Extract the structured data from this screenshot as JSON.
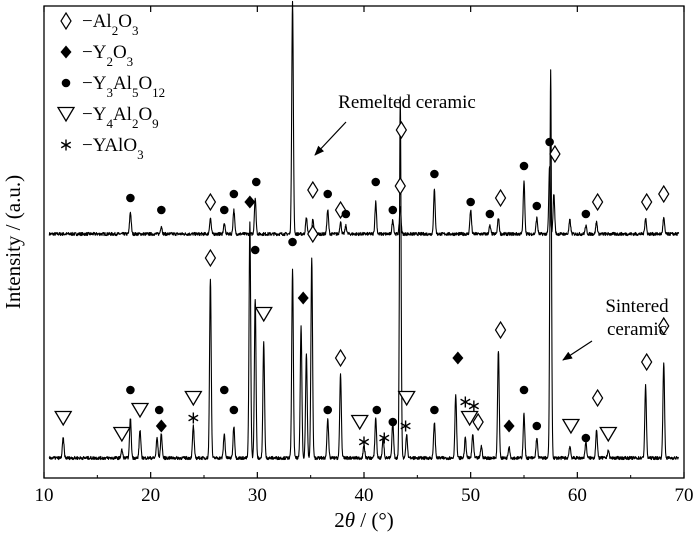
{
  "chart_data": {
    "type": "line",
    "xlabel_parts": [
      {
        "text": "2",
        "style": "normal"
      },
      {
        "text": "θ",
        "style": "italic"
      },
      {
        "text": " / (°)",
        "style": "normal"
      }
    ],
    "ylabel": "Intensity / (a.u.)",
    "xlim": [
      10,
      70
    ],
    "x_ticks": [
      10,
      20,
      30,
      40,
      50,
      60,
      70
    ],
    "y_ticks": "none",
    "grid": false,
    "legend_position": "top-left",
    "legend": [
      {
        "marker": "open-diamond",
        "parts": [
          {
            "t": "−Al"
          },
          {
            "t": "2",
            "sub": true
          },
          {
            "t": "O"
          },
          {
            "t": "3",
            "sub": true
          }
        ]
      },
      {
        "marker": "filled-diamond",
        "parts": [
          {
            "t": "−Y"
          },
          {
            "t": "2",
            "sub": true
          },
          {
            "t": "O"
          },
          {
            "t": "3",
            "sub": true
          }
        ]
      },
      {
        "marker": "filled-circle",
        "parts": [
          {
            "t": "−Y"
          },
          {
            "t": "3",
            "sub": true
          },
          {
            "t": "Al"
          },
          {
            "t": "5",
            "sub": true
          },
          {
            "t": "O"
          },
          {
            "t": "12",
            "sub": true
          }
        ]
      },
      {
        "marker": "open-triangle",
        "parts": [
          {
            "t": "−Y"
          },
          {
            "t": "4",
            "sub": true
          },
          {
            "t": "Al"
          },
          {
            "t": "2",
            "sub": true
          },
          {
            "t": "O"
          },
          {
            "t": "9",
            "sub": true
          }
        ]
      },
      {
        "marker": "asterisk",
        "parts": [
          {
            "t": "−YAlO"
          },
          {
            "t": "3",
            "sub": true
          }
        ]
      }
    ],
    "series": [
      {
        "label_lines": [
          "Remelted ceramic"
        ],
        "arrow_target_x": 33.2,
        "baseline": 0.58,
        "peaks": [
          {
            "x": 18.1,
            "h": 0.055
          },
          {
            "x": 21.0,
            "h": 0.02
          },
          {
            "x": 25.6,
            "h": 0.04
          },
          {
            "x": 26.9,
            "h": 0.025
          },
          {
            "x": 27.8,
            "h": 0.06
          },
          {
            "x": 29.8,
            "h": 0.09
          },
          {
            "x": 33.3,
            "h": 0.58
          },
          {
            "x": 34.6,
            "h": 0.04
          },
          {
            "x": 35.2,
            "h": 0.035
          },
          {
            "x": 36.6,
            "h": 0.06
          },
          {
            "x": 37.8,
            "h": 0.03
          },
          {
            "x": 38.3,
            "h": 0.02
          },
          {
            "x": 41.1,
            "h": 0.08
          },
          {
            "x": 42.7,
            "h": 0.035
          },
          {
            "x": 43.4,
            "h": 0.07
          },
          {
            "x": 46.6,
            "h": 0.11
          },
          {
            "x": 50.0,
            "h": 0.06
          },
          {
            "x": 51.8,
            "h": 0.02
          },
          {
            "x": 52.6,
            "h": 0.04
          },
          {
            "x": 55.0,
            "h": 0.13
          },
          {
            "x": 56.2,
            "h": 0.04
          },
          {
            "x": 57.4,
            "h": 0.17
          },
          {
            "x": 57.8,
            "h": 0.1
          },
          {
            "x": 59.3,
            "h": 0.035
          },
          {
            "x": 60.8,
            "h": 0.02
          },
          {
            "x": 61.8,
            "h": 0.03
          },
          {
            "x": 66.4,
            "h": 0.04
          },
          {
            "x": 68.1,
            "h": 0.04
          }
        ],
        "markers": [
          {
            "type": "filled-circle",
            "x": 18.1,
            "y": 0.67
          },
          {
            "type": "filled-circle",
            "x": 21.0,
            "y": 0.64
          },
          {
            "type": "open-diamond",
            "x": 25.6,
            "y": 0.66
          },
          {
            "type": "filled-circle",
            "x": 26.9,
            "y": 0.64
          },
          {
            "type": "filled-circle",
            "x": 27.8,
            "y": 0.68
          },
          {
            "type": "filled-circle",
            "x": 29.9,
            "y": 0.71
          },
          {
            "type": "filled-circle",
            "x": 33.3,
            "y": 1.18
          },
          {
            "type": "open-diamond",
            "x": 35.2,
            "y": 0.69
          },
          {
            "type": "filled-circle",
            "x": 36.6,
            "y": 0.68
          },
          {
            "type": "open-diamond",
            "x": 37.8,
            "y": 0.64
          },
          {
            "type": "filled-circle",
            "x": 38.3,
            "y": 0.63
          },
          {
            "type": "filled-circle",
            "x": 41.1,
            "y": 0.71
          },
          {
            "type": "filled-circle",
            "x": 42.7,
            "y": 0.64
          },
          {
            "type": "open-diamond",
            "x": 43.4,
            "y": 0.7
          },
          {
            "type": "filled-circle",
            "x": 46.6,
            "y": 0.73
          },
          {
            "type": "filled-circle",
            "x": 50.0,
            "y": 0.66
          },
          {
            "type": "filled-circle",
            "x": 51.8,
            "y": 0.63
          },
          {
            "type": "open-diamond",
            "x": 52.8,
            "y": 0.67
          },
          {
            "type": "filled-circle",
            "x": 55.0,
            "y": 0.75
          },
          {
            "type": "filled-circle",
            "x": 56.2,
            "y": 0.65
          },
          {
            "type": "filled-circle",
            "x": 57.4,
            "y": 0.81
          },
          {
            "type": "open-diamond",
            "x": 57.9,
            "y": 0.78
          },
          {
            "type": "filled-circle",
            "x": 60.8,
            "y": 0.63
          },
          {
            "type": "open-diamond",
            "x": 61.9,
            "y": 0.66
          },
          {
            "type": "open-diamond",
            "x": 66.5,
            "y": 0.66
          },
          {
            "type": "open-diamond",
            "x": 68.1,
            "y": 0.68
          }
        ]
      },
      {
        "label_lines": [
          "Sintered",
          "ceramic"
        ],
        "arrow_target_x": 57.6,
        "baseline": 0.02,
        "peaks": [
          {
            "x": 11.8,
            "h": 0.05
          },
          {
            "x": 17.3,
            "h": 0.02
          },
          {
            "x": 18.1,
            "h": 0.1
          },
          {
            "x": 19.0,
            "h": 0.07
          },
          {
            "x": 20.6,
            "h": 0.05
          },
          {
            "x": 21.0,
            "h": 0.06
          },
          {
            "x": 24.0,
            "h": 0.08
          },
          {
            "x": 25.6,
            "h": 0.45
          },
          {
            "x": 26.9,
            "h": 0.06
          },
          {
            "x": 27.8,
            "h": 0.08
          },
          {
            "x": 29.3,
            "h": 0.59
          },
          {
            "x": 29.8,
            "h": 0.4
          },
          {
            "x": 30.6,
            "h": 0.29
          },
          {
            "x": 33.3,
            "h": 0.47
          },
          {
            "x": 34.1,
            "h": 0.33
          },
          {
            "x": 34.6,
            "h": 0.26
          },
          {
            "x": 35.1,
            "h": 0.5
          },
          {
            "x": 36.6,
            "h": 0.1
          },
          {
            "x": 37.8,
            "h": 0.21
          },
          {
            "x": 40.0,
            "h": 0.03
          },
          {
            "x": 41.1,
            "h": 0.1
          },
          {
            "x": 41.8,
            "h": 0.05
          },
          {
            "x": 42.7,
            "h": 0.09
          },
          {
            "x": 43.4,
            "h": 0.9
          },
          {
            "x": 44.0,
            "h": 0.06
          },
          {
            "x": 46.6,
            "h": 0.09
          },
          {
            "x": 48.6,
            "h": 0.16
          },
          {
            "x": 49.5,
            "h": 0.05
          },
          {
            "x": 50.2,
            "h": 0.06
          },
          {
            "x": 51.0,
            "h": 0.03
          },
          {
            "x": 52.6,
            "h": 0.27
          },
          {
            "x": 53.6,
            "h": 0.03
          },
          {
            "x": 55.0,
            "h": 0.11
          },
          {
            "x": 56.2,
            "h": 0.05
          },
          {
            "x": 57.5,
            "h": 0.97
          },
          {
            "x": 59.3,
            "h": 0.03
          },
          {
            "x": 60.8,
            "h": 0.04
          },
          {
            "x": 61.8,
            "h": 0.07
          },
          {
            "x": 62.9,
            "h": 0.02
          },
          {
            "x": 66.4,
            "h": 0.18
          },
          {
            "x": 68.1,
            "h": 0.24
          }
        ],
        "markers": [
          {
            "type": "open-triangle",
            "x": 11.8,
            "y": 0.12
          },
          {
            "type": "open-triangle",
            "x": 17.3,
            "y": 0.08
          },
          {
            "type": "filled-circle",
            "x": 18.1,
            "y": 0.19
          },
          {
            "type": "open-triangle",
            "x": 19.0,
            "y": 0.14
          },
          {
            "type": "filled-circle",
            "x": 20.8,
            "y": 0.14
          },
          {
            "type": "filled-diamond",
            "x": 21.0,
            "y": 0.1
          },
          {
            "type": "asterisk",
            "x": 24.0,
            "y": 0.12
          },
          {
            "type": "open-triangle",
            "x": 24.0,
            "y": 0.17
          },
          {
            "type": "open-diamond",
            "x": 25.6,
            "y": 0.52
          },
          {
            "type": "filled-circle",
            "x": 26.9,
            "y": 0.19
          },
          {
            "type": "filled-circle",
            "x": 27.8,
            "y": 0.14
          },
          {
            "type": "filled-diamond",
            "x": 29.3,
            "y": 0.66
          },
          {
            "type": "filled-circle",
            "x": 29.8,
            "y": 0.54
          },
          {
            "type": "open-triangle",
            "x": 30.6,
            "y": 0.38
          },
          {
            "type": "filled-circle",
            "x": 33.3,
            "y": 0.56
          },
          {
            "type": "filled-diamond",
            "x": 34.3,
            "y": 0.42
          },
          {
            "type": "open-diamond",
            "x": 35.2,
            "y": 0.58
          },
          {
            "type": "filled-circle",
            "x": 36.6,
            "y": 0.14
          },
          {
            "type": "open-diamond",
            "x": 37.8,
            "y": 0.27
          },
          {
            "type": "open-triangle",
            "x": 39.6,
            "y": 0.11
          },
          {
            "type": "asterisk",
            "x": 40.0,
            "y": 0.06
          },
          {
            "type": "filled-circle",
            "x": 41.2,
            "y": 0.14
          },
          {
            "type": "asterisk",
            "x": 41.9,
            "y": 0.07
          },
          {
            "type": "filled-circle",
            "x": 42.7,
            "y": 0.11
          },
          {
            "type": "open-diamond",
            "x": 43.5,
            "y": 0.84
          },
          {
            "type": "asterisk",
            "x": 43.9,
            "y": 0.1
          },
          {
            "type": "open-triangle",
            "x": 44.0,
            "y": 0.17
          },
          {
            "type": "filled-circle",
            "x": 46.6,
            "y": 0.14
          },
          {
            "type": "filled-diamond",
            "x": 48.8,
            "y": 0.27
          },
          {
            "type": "asterisk",
            "x": 49.5,
            "y": 0.16
          },
          {
            "type": "open-triangle",
            "x": 49.9,
            "y": 0.12
          },
          {
            "type": "asterisk",
            "x": 50.3,
            "y": 0.15
          },
          {
            "type": "open-diamond",
            "x": 50.7,
            "y": 0.11
          },
          {
            "type": "open-diamond",
            "x": 52.8,
            "y": 0.34
          },
          {
            "type": "filled-diamond",
            "x": 53.6,
            "y": 0.1
          },
          {
            "type": "filled-circle",
            "x": 55.0,
            "y": 0.19
          },
          {
            "type": "filled-circle",
            "x": 56.2,
            "y": 0.1
          },
          {
            "type": "open-triangle",
            "x": 59.4,
            "y": 0.1
          },
          {
            "type": "filled-circle",
            "x": 60.8,
            "y": 0.07
          },
          {
            "type": "open-diamond",
            "x": 61.9,
            "y": 0.17
          },
          {
            "type": "open-triangle",
            "x": 62.9,
            "y": 0.08
          },
          {
            "type": "open-diamond",
            "x": 66.5,
            "y": 0.26
          },
          {
            "type": "open-diamond",
            "x": 68.1,
            "y": 0.35
          }
        ]
      }
    ]
  }
}
